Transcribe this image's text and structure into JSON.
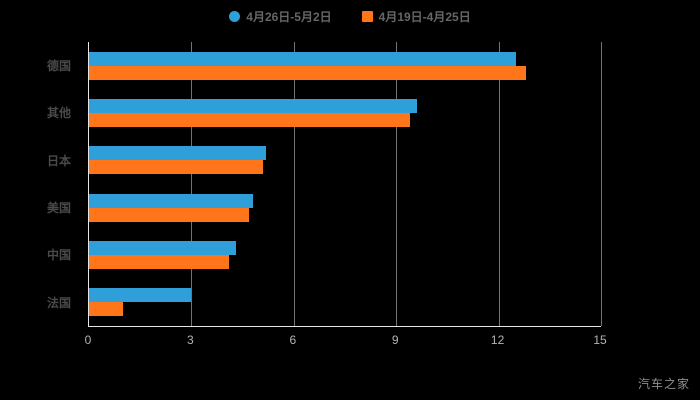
{
  "legend": {
    "items": [
      {
        "label": "4月26日-5月2日",
        "color": "#2E9FD9",
        "shape": "circle"
      },
      {
        "label": "4月19日-4月25日",
        "color": "#FF7519",
        "shape": "square"
      }
    ]
  },
  "watermark": "汽车之家",
  "colors": {
    "background": "#000000",
    "axis": "#E6E6E6",
    "gridline": "rgba(255,255,255,0.45)",
    "category_label": "#4A4A4A",
    "tick_label": "#B3B3B3",
    "legend_label": "#666666"
  },
  "chart_data": {
    "type": "bar",
    "orientation": "horizontal",
    "title": "",
    "categories": [
      "德国",
      "其他",
      "日本",
      "美国",
      "中国",
      "法国"
    ],
    "series": [
      {
        "name": "4月26日-5月2日",
        "color": "#2E9FD9",
        "values": [
          12.5,
          9.6,
          5.2,
          4.8,
          4.3,
          3.0
        ]
      },
      {
        "name": "4月19日-4月25日",
        "color": "#FF7519",
        "values": [
          12.8,
          9.4,
          5.1,
          4.7,
          4.1,
          1.0
        ]
      }
    ],
    "xlabel": "",
    "ylabel": "",
    "xlim": [
      0,
      15
    ],
    "x_ticks": [
      0,
      3,
      6,
      9,
      12,
      15
    ],
    "grid": true,
    "legend_position": "top",
    "background": "#000000"
  }
}
